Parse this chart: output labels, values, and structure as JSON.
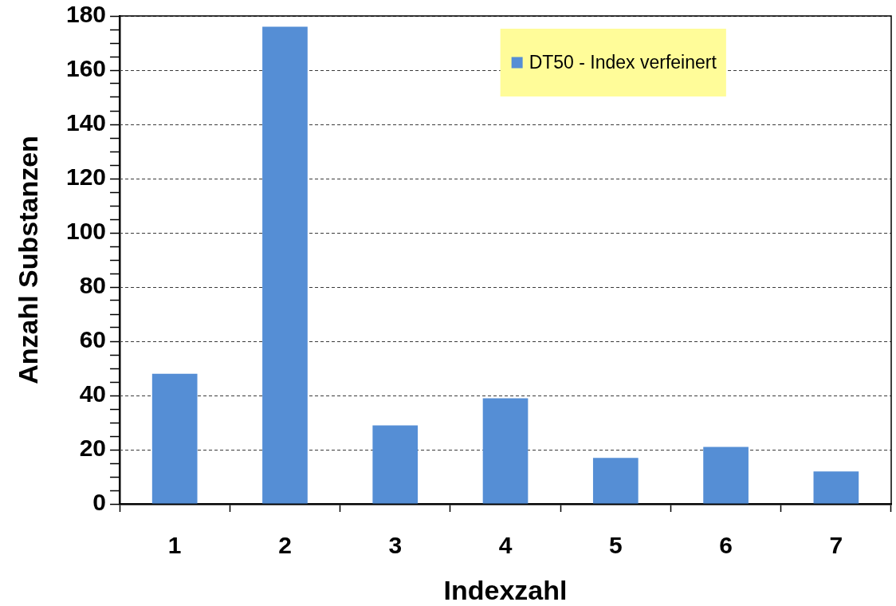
{
  "chart_data": {
    "type": "bar",
    "xlabel": "Indexzahl",
    "ylabel": "Anzahl Substanzen",
    "categories": [
      "1",
      "2",
      "3",
      "4",
      "5",
      "6",
      "7"
    ],
    "series": [
      {
        "name": "DT50 - Index verfeinert",
        "color": "#558ed5",
        "values": [
          48,
          176,
          29,
          39,
          17,
          21,
          12
        ]
      }
    ],
    "ylim": [
      0,
      180
    ],
    "yticks": [
      0,
      {
        "value": 5,
        "label": null
      },
      {
        "value": 10,
        "label": null
      },
      {
        "value": 15,
        "label": null
      },
      20,
      {
        "value": 25,
        "label": null
      },
      {
        "value": 30,
        "label": null
      },
      {
        "value": 35,
        "label": null
      },
      40,
      {
        "value": 45,
        "label": null
      },
      {
        "value": 50,
        "label": null
      },
      {
        "value": 55,
        "label": null
      },
      60,
      {
        "value": 65,
        "label": null
      },
      {
        "value": 70,
        "label": null
      },
      {
        "value": 75,
        "label": null
      },
      80,
      {
        "value": 85,
        "label": null
      },
      {
        "value": 90,
        "label": null
      },
      {
        "value": 95,
        "label": null
      },
      100,
      {
        "value": 105,
        "label": null
      },
      {
        "value": 110,
        "label": null
      },
      {
        "value": 115,
        "label": null
      },
      120,
      {
        "value": 125,
        "label": null
      },
      {
        "value": 130,
        "label": null
      },
      {
        "value": 135,
        "label": null
      },
      140,
      {
        "value": 145,
        "label": null
      },
      {
        "value": 150,
        "label": null
      },
      {
        "value": 155,
        "label": null
      },
      160,
      {
        "value": 165,
        "label": null
      },
      {
        "value": 170,
        "label": null
      },
      {
        "value": 175,
        "label": null
      },
      180
    ],
    "grid": "y",
    "legend": "top right"
  }
}
